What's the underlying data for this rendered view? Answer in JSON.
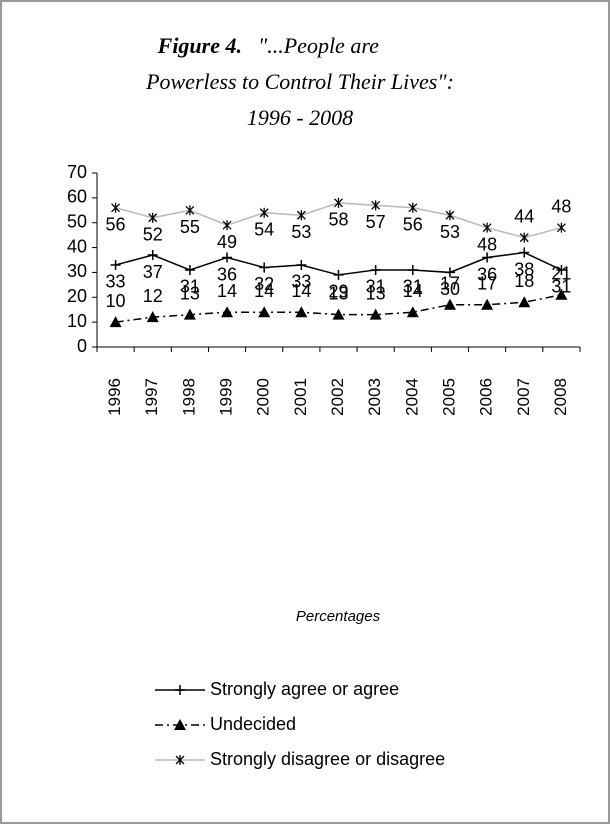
{
  "chart_data": {
    "type": "line",
    "title": "Figure 4.",
    "title_lines": [
      "\"...People are",
      "Powerless to Control Their Lives\":",
      "1996 - 2008"
    ],
    "x_label": "Percentages",
    "categories": [
      "1996",
      "1997",
      "1998",
      "1999",
      "2000",
      "2001",
      "2002",
      "2003",
      "2004",
      "2005",
      "2006",
      "2007",
      "2008"
    ],
    "series": [
      {
        "name": "Strongly agree or agree",
        "color": "#000000",
        "marker": "plus",
        "dash": "solid",
        "values": [
          33,
          37,
          31,
          36,
          32,
          33,
          29,
          31,
          31,
          30,
          36,
          38,
          31
        ]
      },
      {
        "name": "Undecided",
        "color": "#000000",
        "marker": "triangle",
        "dash": "dashdot",
        "values": [
          10,
          12,
          13,
          14,
          14,
          14,
          13,
          13,
          14,
          17,
          17,
          18,
          21
        ]
      },
      {
        "name": "Strongly disagree or disagree",
        "color": "#b8b8b8",
        "marker": "asterisk",
        "dash": "solid",
        "values": [
          56,
          52,
          55,
          49,
          54,
          53,
          58,
          57,
          56,
          53,
          48,
          44,
          48
        ]
      }
    ],
    "ylim": [
      0,
      70
    ],
    "yticks": [
      0,
      10,
      20,
      30,
      40,
      50,
      60,
      70
    ],
    "grid": false
  }
}
